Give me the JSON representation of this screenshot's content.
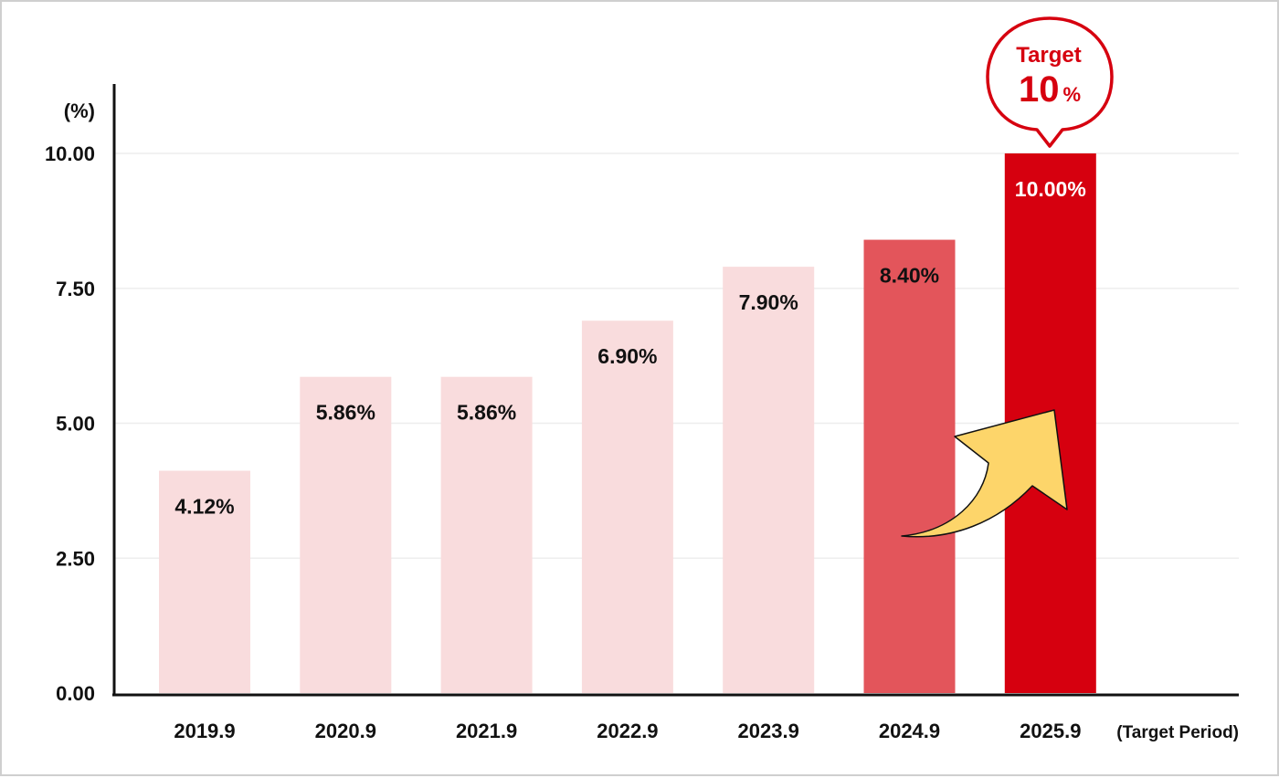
{
  "chart_data": {
    "type": "bar",
    "title": "",
    "xlabel": "",
    "ylabel": "(%)",
    "ylim": [
      0,
      10
    ],
    "yticks": [
      "0.00",
      "2.50",
      "5.00",
      "7.50",
      "10.00"
    ],
    "ytick_values": [
      0,
      2.5,
      5,
      7.5,
      10
    ],
    "grid": true,
    "categories": [
      "2019.9",
      "2020.9",
      "2021.9",
      "2022.9",
      "2023.9",
      "2024.9",
      "2025.9"
    ],
    "values": [
      4.12,
      5.86,
      5.86,
      6.9,
      7.9,
      8.4,
      10.0
    ],
    "value_labels": [
      "4.12%",
      "5.86%",
      "5.86%",
      "6.90%",
      "7.90%",
      "8.40%",
      "10.00%"
    ],
    "bar_colors": [
      "#f9dcdd",
      "#f9dcdd",
      "#f9dcdd",
      "#f9dcdd",
      "#f9dcdd",
      "#e3555b",
      "#d6000f"
    ],
    "label_colors": [
      "#111111",
      "#111111",
      "#111111",
      "#111111",
      "#111111",
      "#111111",
      "#ffffff"
    ],
    "x_note": "(Target Period)",
    "callout": {
      "title": "Target",
      "value": "10",
      "unit": "%"
    },
    "arrow_color": "#fdd56a"
  }
}
